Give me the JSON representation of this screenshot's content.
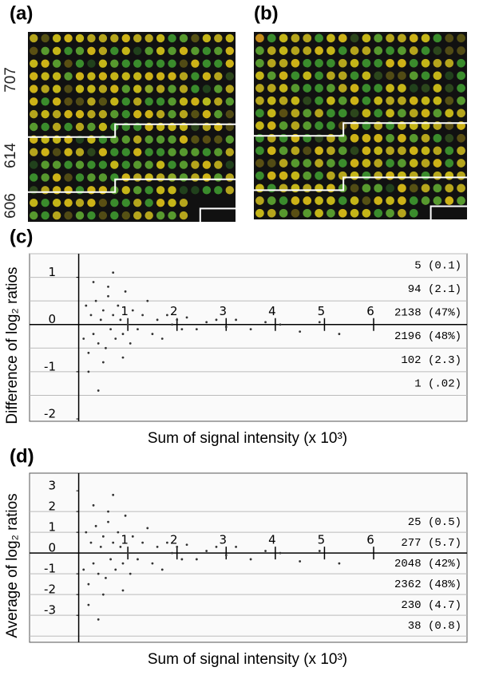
{
  "figure": {
    "panels": [
      "(a)",
      "(b)"
    ],
    "row_labels": [
      "707",
      "614",
      "606"
    ]
  },
  "chart_data": [
    {
      "type": "scatter",
      "panel": "(c)",
      "x_label": "Sum of signal intensity (x 10³)",
      "y_label": "Difference of log₂ ratios",
      "xlim": [
        -1,
        7.9
      ],
      "ylim": [
        -2.05,
        1.5
      ],
      "xticks": [
        1,
        2,
        3,
        4,
        5,
        6
      ],
      "yticks": [
        -2,
        -1,
        0,
        1
      ],
      "hlines": [
        1.5,
        1,
        0.5,
        -0.5,
        -1,
        -1.5
      ],
      "color": "#333333",
      "annotations": [
        "5 (0.1)",
        "94 (2.1)",
        "2138 (47%)",
        "2196 (48%)",
        "102 (2.3)",
        "1 (.02)"
      ],
      "x": [
        0.1,
        0.15,
        0.2,
        0.25,
        0.3,
        0.35,
        0.4,
        0.45,
        0.5,
        0.55,
        0.6,
        0.65,
        0.7,
        0.75,
        0.8,
        0.85,
        0.9,
        0.95,
        1.0,
        1.05,
        1.1,
        1.2,
        1.3,
        1.4,
        1.5,
        1.6,
        1.7,
        1.8,
        1.9,
        2.0,
        2.1,
        2.2,
        2.4,
        2.6,
        2.8,
        3.0,
        3.2,
        3.5,
        3.8,
        4.1,
        4.5,
        4.9,
        5.3,
        0.2,
        0.3,
        0.5,
        0.7,
        0.4,
        0.6,
        0.9
      ],
      "values": [
        -0.3,
        0.4,
        -0.6,
        0.2,
        -0.2,
        0.5,
        -0.4,
        0.1,
        0.3,
        -0.5,
        0.6,
        -0.1,
        0.2,
        -0.3,
        0.4,
        0.1,
        -0.2,
        0.7,
        0.0,
        -0.4,
        0.3,
        -0.1,
        0.2,
        0.5,
        -0.2,
        0.1,
        -0.3,
        0.2,
        0.0,
        0.1,
        -0.1,
        0.15,
        -0.1,
        0.05,
        0.1,
        -0.05,
        0.1,
        -0.1,
        0.05,
        0.0,
        -0.15,
        0.05,
        -0.2,
        -1.0,
        0.9,
        -0.8,
        1.1,
        -1.4,
        0.8,
        -0.7
      ]
    },
    {
      "type": "scatter",
      "panel": "(d)",
      "x_label": "Sum of signal intensity (x 10³)",
      "y_label": "Average of log₂ ratios",
      "xlim": [
        -1,
        7.9
      ],
      "ylim": [
        -4.3,
        3.85
      ],
      "xticks": [
        1,
        2,
        3,
        4,
        5,
        6
      ],
      "yticks": [
        -3,
        -2,
        -1,
        0,
        1,
        2,
        3
      ],
      "hlines": [
        2,
        1,
        -1,
        -2,
        -3,
        -4
      ],
      "color": "#333333",
      "annotations": [
        "25 (0.5)",
        "277 (5.7)",
        "2048 (42%)",
        "2362 (48%)",
        "230 (4.7)",
        "38 (0.8)"
      ],
      "x": [
        0.1,
        0.15,
        0.2,
        0.25,
        0.3,
        0.35,
        0.4,
        0.45,
        0.5,
        0.55,
        0.6,
        0.65,
        0.7,
        0.75,
        0.8,
        0.85,
        0.9,
        0.95,
        1.0,
        1.05,
        1.1,
        1.2,
        1.3,
        1.4,
        1.5,
        1.6,
        1.7,
        1.8,
        1.9,
        2.0,
        2.1,
        2.2,
        2.4,
        2.6,
        2.8,
        3.0,
        3.2,
        3.5,
        3.8,
        4.1,
        4.5,
        4.9,
        5.3,
        0.2,
        0.3,
        0.5,
        0.7,
        0.4,
        0.6,
        0.9
      ],
      "values": [
        -0.8,
        1.0,
        -1.5,
        0.5,
        -0.5,
        1.3,
        -1.0,
        0.3,
        0.8,
        -1.2,
        1.5,
        -0.3,
        0.5,
        -0.8,
        1.0,
        0.3,
        -0.5,
        1.8,
        0.0,
        -1.0,
        0.8,
        -0.3,
        0.5,
        1.2,
        -0.5,
        0.3,
        -0.8,
        0.5,
        0.0,
        0.3,
        -0.3,
        0.4,
        -0.3,
        0.1,
        0.3,
        -0.1,
        0.3,
        -0.3,
        0.1,
        0.0,
        -0.4,
        0.1,
        -0.5,
        -2.5,
        2.3,
        -2.0,
        2.8,
        -3.2,
        2.0,
        -1.8
      ]
    }
  ]
}
